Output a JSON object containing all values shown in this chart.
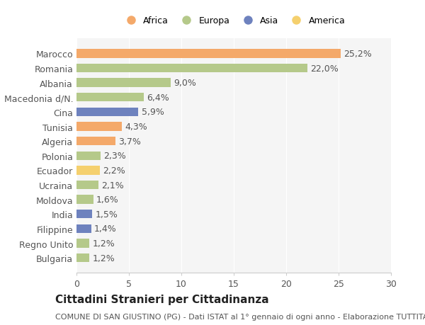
{
  "categories": [
    "Marocco",
    "Romania",
    "Albania",
    "Macedonia d/N.",
    "Cina",
    "Tunisia",
    "Algeria",
    "Polonia",
    "Ecuador",
    "Ucraina",
    "Moldova",
    "India",
    "Filippine",
    "Regno Unito",
    "Bulgaria"
  ],
  "values": [
    25.2,
    22.0,
    9.0,
    6.4,
    5.9,
    4.3,
    3.7,
    2.3,
    2.2,
    2.1,
    1.6,
    1.5,
    1.4,
    1.2,
    1.2
  ],
  "labels": [
    "25,2%",
    "22,0%",
    "9,0%",
    "6,4%",
    "5,9%",
    "4,3%",
    "3,7%",
    "2,3%",
    "2,2%",
    "2,1%",
    "1,6%",
    "1,5%",
    "1,4%",
    "1,2%",
    "1,2%"
  ],
  "continents": [
    "Africa",
    "Europa",
    "Europa",
    "Europa",
    "Asia",
    "Africa",
    "Africa",
    "Europa",
    "America",
    "Europa",
    "Europa",
    "Asia",
    "Asia",
    "Europa",
    "Europa"
  ],
  "continent_colors": {
    "Africa": "#F4A96A",
    "Europa": "#B5C98A",
    "Asia": "#6E82BE",
    "America": "#F5D06E"
  },
  "legend_order": [
    "Africa",
    "Europa",
    "Asia",
    "America"
  ],
  "title": "Cittadini Stranieri per Cittadinanza",
  "subtitle": "COMUNE DI SAN GIUSTINO (PG) - Dati ISTAT al 1° gennaio di ogni anno - Elaborazione TUTTITALIA.IT",
  "xlim": [
    0,
    30
  ],
  "xticks": [
    0,
    5,
    10,
    15,
    20,
    25,
    30
  ],
  "background_color": "#ffffff",
  "bar_facecolor": "#f5f5f5",
  "bar_height": 0.6,
  "label_fontsize": 9,
  "tick_fontsize": 9,
  "title_fontsize": 11,
  "subtitle_fontsize": 8
}
